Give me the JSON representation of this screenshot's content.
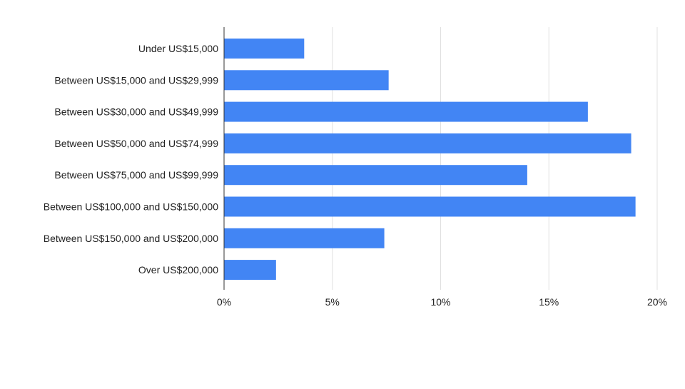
{
  "chart_data": {
    "type": "bar",
    "orientation": "horizontal",
    "title": "",
    "xlabel": "",
    "ylabel": "",
    "categories": [
      "Under US$15,000",
      "Between US$15,000 and US$29,999",
      "Between US$30,000 and US$49,999",
      "Between US$50,000 and US$74,999",
      "Between US$75,000 and US$99,999",
      "Between US$100,000 and US$150,000",
      "Between US$150,000 and US$200,000",
      "Over US$200,000"
    ],
    "values": [
      3.7,
      7.6,
      16.8,
      18.8,
      14.0,
      19.0,
      7.4,
      2.4
    ],
    "xlim": [
      0,
      20
    ],
    "xticks": [
      0,
      5,
      10,
      15,
      20
    ],
    "xtick_labels": [
      "0%",
      "5%",
      "10%",
      "15%",
      "20%"
    ],
    "grid": true,
    "legend": "none",
    "bar_color": "#4285F4",
    "grid_color": "#e0e0e0",
    "axis_color": "#333333",
    "text_color": "#222222"
  }
}
